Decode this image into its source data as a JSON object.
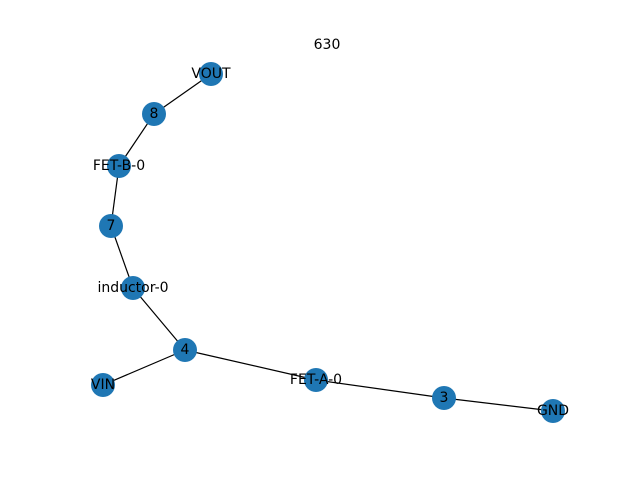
{
  "title": "630",
  "colors": {
    "node_fill": "#1f77b4",
    "edge": "#000000",
    "label": "#000000",
    "background": "#ffffff"
  },
  "nodes": [
    {
      "id": "VOUT",
      "label": "VOUT"
    },
    {
      "id": "8",
      "label": "8"
    },
    {
      "id": "FET-B-0",
      "label": "FET-B-0"
    },
    {
      "id": "7",
      "label": "7"
    },
    {
      "id": "inductor-0",
      "label": "inductor-0"
    },
    {
      "id": "4",
      "label": "4"
    },
    {
      "id": "VIN",
      "label": "VIN"
    },
    {
      "id": "FET-A-0",
      "label": "FET-A-0"
    },
    {
      "id": "3",
      "label": "3"
    },
    {
      "id": "GND",
      "label": "GND"
    }
  ],
  "edges": [
    {
      "source": "VOUT",
      "target": "8"
    },
    {
      "source": "8",
      "target": "FET-B-0"
    },
    {
      "source": "FET-B-0",
      "target": "7"
    },
    {
      "source": "7",
      "target": "inductor-0"
    },
    {
      "source": "inductor-0",
      "target": "4"
    },
    {
      "source": "4",
      "target": "VIN"
    },
    {
      "source": "4",
      "target": "FET-A-0"
    },
    {
      "source": "FET-A-0",
      "target": "3"
    },
    {
      "source": "3",
      "target": "GND"
    }
  ]
}
